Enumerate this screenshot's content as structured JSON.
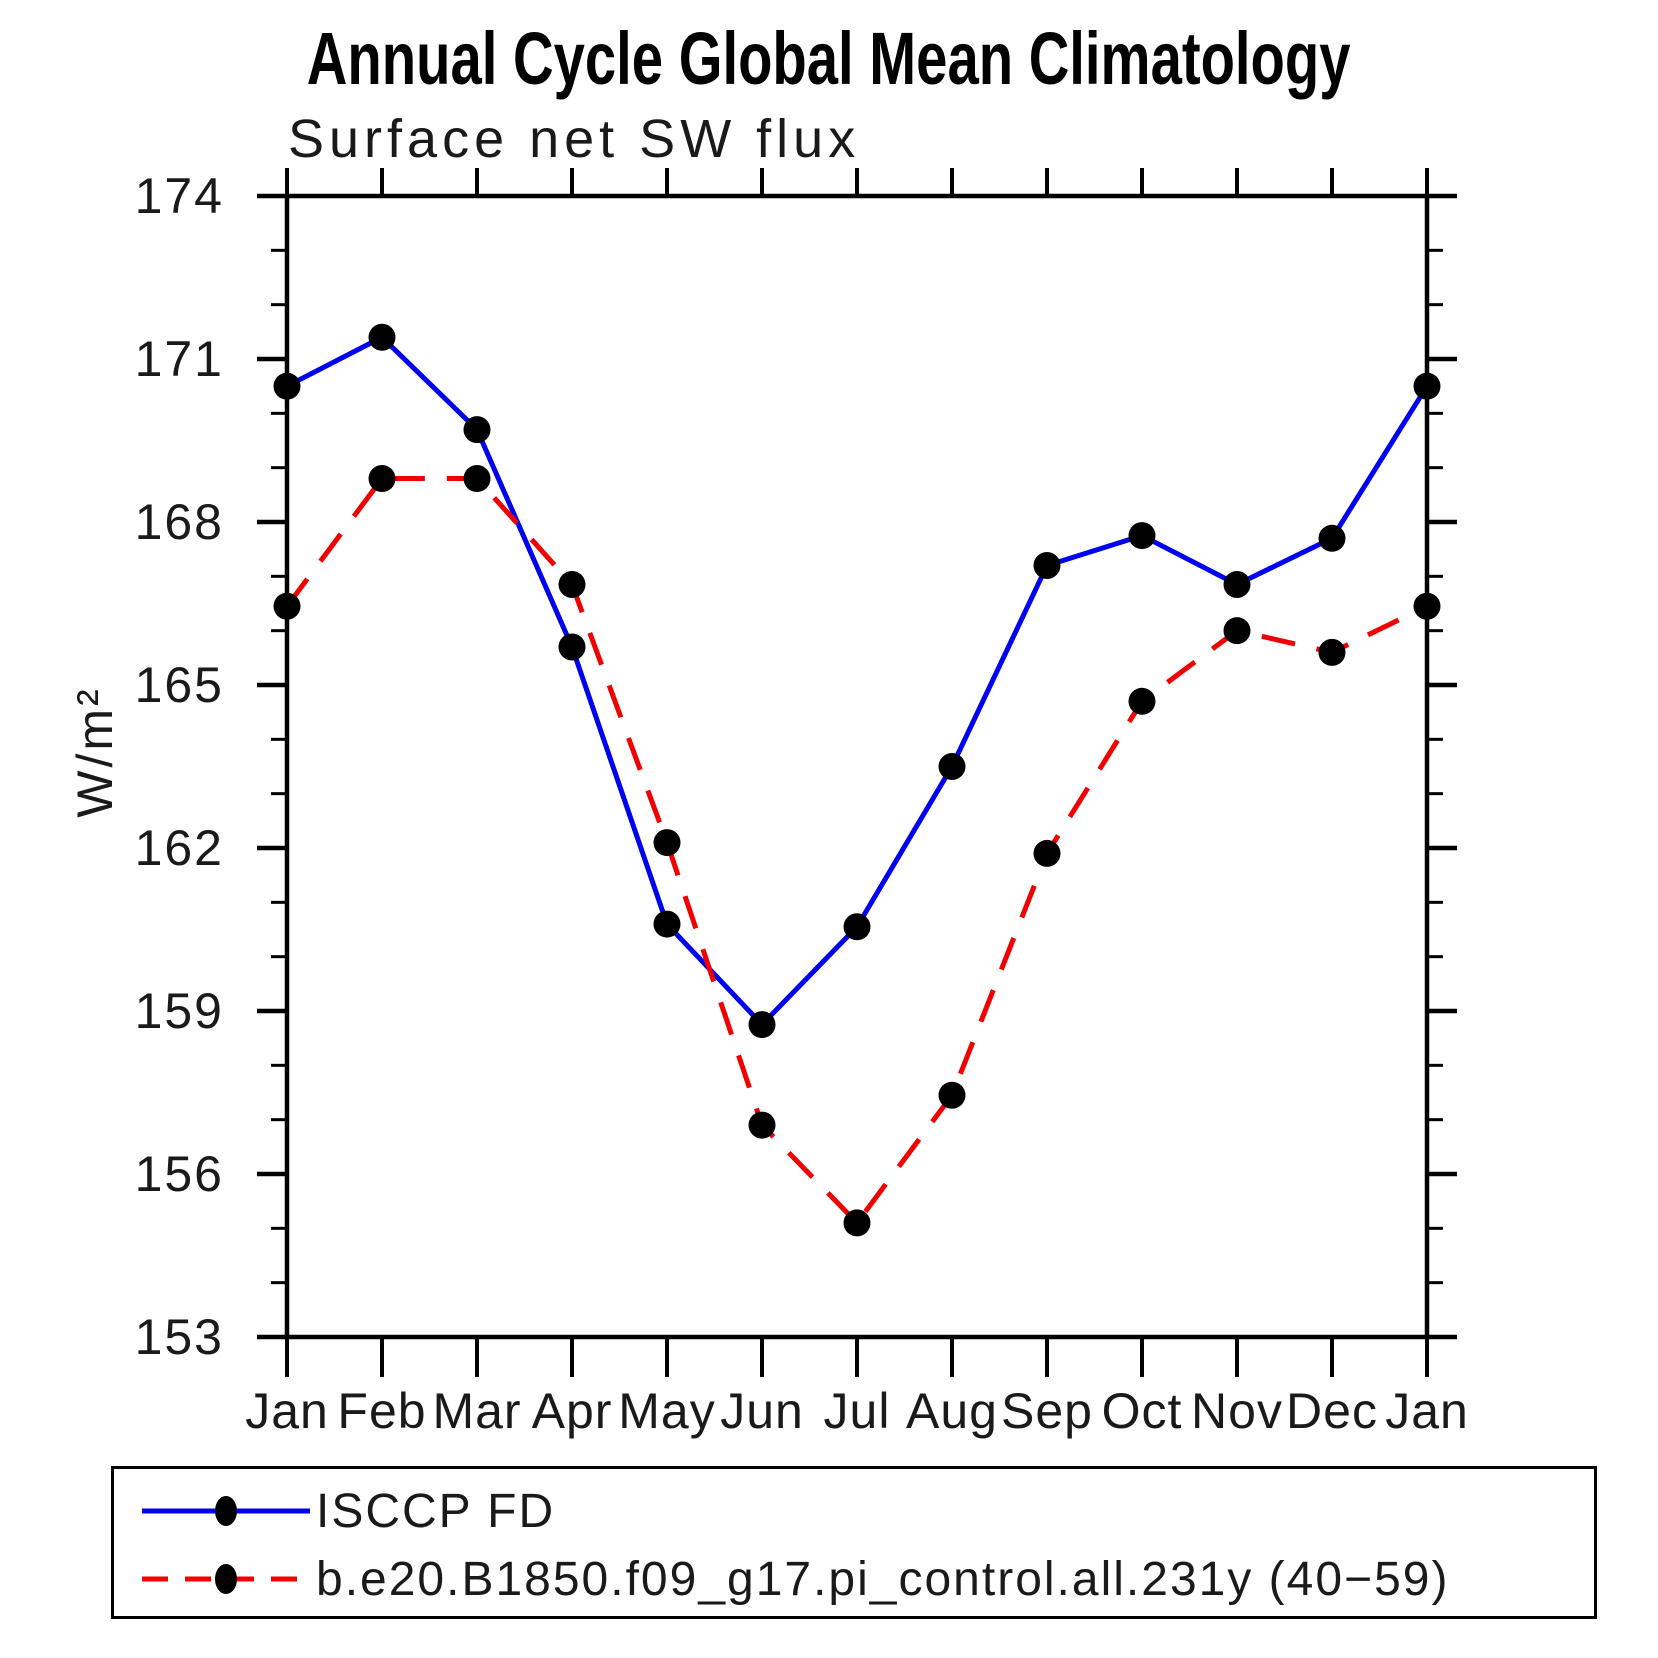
{
  "chart_data": {
    "type": "line",
    "title": "Annual Cycle Global Mean Climatology",
    "subtitle": "Surface net SW flux",
    "ylabel": "W/m²",
    "xlabel": "",
    "categories": [
      "Jan",
      "Feb",
      "Mar",
      "Apr",
      "May",
      "Jun",
      "Jul",
      "Aug",
      "Sep",
      "Oct",
      "Nov",
      "Dec",
      "Jan"
    ],
    "ylim": [
      153,
      174
    ],
    "ytick_major_step": 3,
    "ytick_minor_step": 1,
    "ytick_labels": [
      "153",
      "156",
      "159",
      "162",
      "165",
      "168",
      "171",
      "174"
    ],
    "grid": false,
    "legend_position": "bottom-left-box",
    "axis_color": "#000000",
    "marker_color": "#000000",
    "series": [
      {
        "name": "ISCCP FD",
        "color": "#0000f0",
        "line": "solid",
        "marker": "filled-circle",
        "values": [
          170.5,
          171.4,
          169.7,
          165.7,
          160.6,
          158.75,
          160.55,
          163.5,
          167.2,
          167.75,
          166.85,
          167.7,
          170.5
        ]
      },
      {
        "name": "b.e20.B1850.f09_g17.pi_control.all.231y (40−59)",
        "color": "#f00000",
        "line": "dashed",
        "marker": "filled-circle",
        "values": [
          166.45,
          168.8,
          168.8,
          166.85,
          162.1,
          156.9,
          155.1,
          157.45,
          161.9,
          164.7,
          166.0,
          165.6,
          166.45
        ]
      }
    ]
  }
}
